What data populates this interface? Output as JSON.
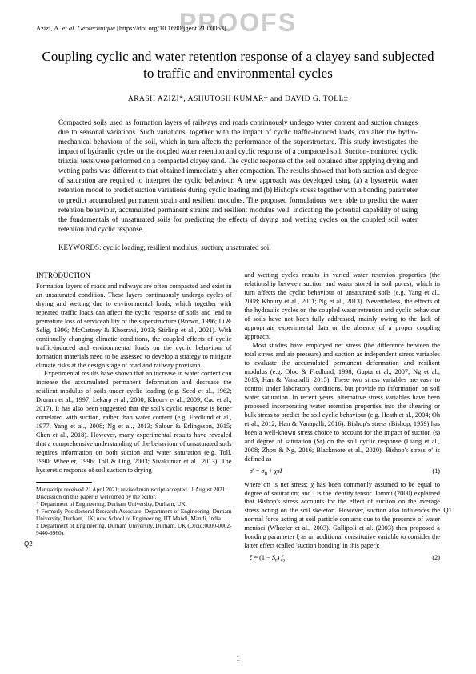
{
  "watermark": "PROOFS",
  "citation": "Azizi, A. et al. Géotechnique [https://doi.org/10.1680/jgeot.21.00063]",
  "title": "Coupling cyclic and water retention response of a clayey sand subjected to traffic and environmental cycles",
  "authors": "ARASH AZIZI*, ASHUTOSH KUMAR† and DAVID G. TOLL‡",
  "abstract": "Compacted soils used as formation layers of railways and roads continuously undergo water content and suction changes due to seasonal variations. Such variations, together with the impact of cyclic traffic-induced loads, can alter the hydro-mechanical behaviour of the soil, which in turn affects the performance of the superstructure. This study investigates the impact of hydraulic cycles on the coupled water retention and cyclic response of a compacted soil. Suction-monitored cyclic triaxial tests were performed on a compacted clayey sand. The cyclic response of the soil obtained after applying drying and wetting paths was different to that obtained immediately after compaction. The results showed that both suction and degree of saturation are required to interpret the cyclic behaviour. A new approach was developed using (a) a hysteretic water retention model to predict suction variations during cyclic loading and (b) Bishop's stress together with a bonding parameter to predict accumulated permanent strain and resilient modulus. The proposed formulations were able to predict the water retention behaviour, accumulated permanent strains and resilient modulus well, indicating the potential capability of using the fundamentals of unsaturated soils for predicting the effects of drying and wetting cycles on the coupled soil water retention and cyclic response.",
  "keywords": "KEYWORDS: cyclic loading; resilient modulus; suction; unsaturated soil",
  "intro_head": "INTRODUCTION",
  "col1_p1": "Formation layers of roads and railways are often compacted and exist in an unsaturated condition. These layers continuously undergo cycles of drying and wetting due to environmental loads, which together with repeated traffic loads can affect the cyclic response of soils and lead to premature loss of serviceability of the superstructure (Brown, 1996; Li & Selig, 1996; McCartney & Khosravi, 2013; Stirling et al., 2021). With continually changing climatic conditions, the coupled effects of cyclic traffic-induced and environmental loads on the cyclic behaviour of formation materials need to be assessed to develop a strategy to mitigate climate risks at the design stage of road and railway provision.",
  "col1_p2": "Experimental results have shown that an increase in water content can increase the accumulated permanent deformation and decrease the resilient modulus of soils under cyclic loading (e.g. Seed et al., 1962; Drumm et al., 1997; Lekarp et al., 2000; Khoury et al., 2009; Cao et al., 2017). It has also been suggested that the soil's cyclic response is better correlated with suction, rather than water content (e.g. Fredlund et al., 1977; Yang et al., 2008; Ng et al., 2013; Salour & Erlingsson, 2015; Chen et al., 2018). However, many experimental results have revealed that a comprehensive understanding of the behaviour of unsaturated soils requires information on both suction and water saturation (e.g. Toll, 1990; Wheeler, 1996; Toll & Ong, 2003; Sivakumar et al., 2013). The hysteretic response of soil suction to drying",
  "col2_p1": "and wetting cycles results in varied water retention properties (the relationship between suction and water stored in soil pores), which in turn affects the cyclic behaviour of unsaturated soils (e.g. Yang et al., 2008; Khoury et al., 2011; Ng et al., 2013). Nevertheless, the effects of the hydraulic cycles on the coupled water retention and cyclic behaviour of soils have not been fully addressed, mainly owing to the lack of appropriate experimental data or the absence of a proper coupling approach.",
  "col2_p2": "Most studies have employed net stress (the difference between the total stress and air pressure) and suction as independent stress variables to evaluate the accumulated permanent deformation and resilient modulus (e.g. Oloo & Fredlund, 1998; Gupta et al., 2007; Ng et al., 2013; Han & Vanapalli, 2015). These two stress variables are easy to control under laboratory conditions, but provide no information on soil water saturation. In recent years, alternative stress variables have been proposed incorporating water retention properties into the shearing or bulk stress to predict the soil cyclic behaviour (e.g. Heath et al., 2004; Oh et al., 2012; Han & Vanapalli, 2016). Bishop's stress (Bishop, 1959) has been a well-known stress choice to account for the impact of suction (s) and degree of saturation (Sr) on the soil cyclic response (Liang et al., 2008; Zhou & Ng, 2016; Blackmore et al., 2020). Bishop's stress σ′ is defined as",
  "eq1_formula": "σ′ = σn + χsI",
  "eq1_num": "(1)",
  "col2_p3": "where σn is net stress; χ has been commonly assumed to be equal to degree of saturation; and I is the identity tensor. Jommi (2000) explained that Bishop's stress accounts for the effect of suction on the average stress acting on the soil skeleton. However, suction also influences the normal force acting at soil particle contacts due to the presence of water menisci (Wheeler et al., 2003). Gallipoli et al. (2003) then proposed a bonding parameter ξ as an additional constitutive variable to consider the latter effect (called 'suction bonding' in this paper):",
  "eq2_formula": "ξ = (1 − Sr) fs",
  "eq2_num": "(2)",
  "fn1": "Manuscript received 21 April 2021; revised manuscript accepted 11 August 2021.",
  "fn2": "Discussion on this paper is welcomed by the editor.",
  "fn3": "* Department of Engineering, Durham University, Durham, UK.",
  "fn4": "† Formerly Postdoctoral Research Associate, Department of Engineering, Durham University, Durham, UK; now School of Engineering, IIT Mandi, Mandi, India.",
  "fn5": "‡ Department of Engineering, Durham University, Durham, UK (Orcid:0000-0002-9440-9960).",
  "q2": "Q2",
  "q1": "Q1",
  "pagenum": "1"
}
